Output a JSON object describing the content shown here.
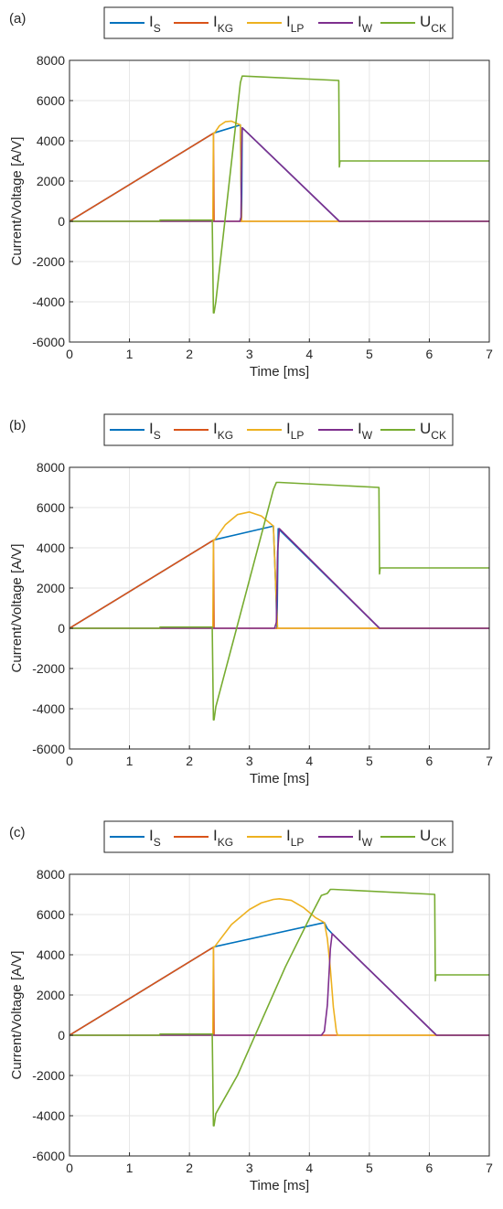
{
  "figure": {
    "panels": [
      "(a)",
      "(b)",
      "(c)"
    ]
  },
  "legend_entries": [
    {
      "main": "I",
      "sub": "S",
      "color": "#0072BD"
    },
    {
      "main": "I",
      "sub": "KG",
      "color": "#D95319"
    },
    {
      "main": "I",
      "sub": "LP",
      "color": "#EDB120"
    },
    {
      "main": "I",
      "sub": "W",
      "color": "#7E2F8E"
    },
    {
      "main": "U",
      "sub": "CK",
      "color": "#77AC30"
    }
  ],
  "chart_data": [
    {
      "type": "line",
      "panel_label": "(a)",
      "xlabel": "Time [ms]",
      "ylabel": "Current/Voltage [A/V]",
      "xlim": [
        0,
        7
      ],
      "ylim": [
        -6000,
        8000
      ],
      "xticks": [
        0,
        1,
        2,
        3,
        4,
        5,
        6,
        7
      ],
      "yticks": [
        -6000,
        -4000,
        -2000,
        0,
        2000,
        4000,
        6000,
        8000
      ],
      "grid": true,
      "legend_position": "top-outside",
      "series": [
        {
          "name": "I_S",
          "x": [
            0,
            2.4,
            2.42,
            2.85,
            2.86,
            2.87,
            2.88,
            4.5,
            7
          ],
          "y": [
            0,
            4380,
            4400,
            4790,
            2000,
            0,
            4650,
            0,
            0
          ]
        },
        {
          "name": "I_KG",
          "x": [
            0,
            2.4,
            2.41,
            7
          ],
          "y": [
            0,
            4380,
            0,
            0
          ]
        },
        {
          "name": "I_LP",
          "x": [
            0,
            2.39,
            2.4,
            2.42,
            2.5,
            2.6,
            2.7,
            2.8,
            2.85,
            2.86,
            2.87,
            2.88,
            7
          ],
          "y": [
            0,
            0,
            4380,
            4400,
            4750,
            4950,
            4980,
            4850,
            4790,
            2000,
            0,
            0,
            0
          ]
        },
        {
          "name": "I_W",
          "x": [
            0,
            2.84,
            2.86,
            2.87,
            2.88,
            4.5,
            7
          ],
          "y": [
            0,
            0,
            200,
            3500,
            4650,
            0,
            0
          ]
        },
        {
          "name": "U_CK",
          "x": [
            0,
            1.5,
            1.51,
            2.38,
            2.4,
            2.41,
            2.44,
            2.85,
            2.88,
            2.9,
            4.49,
            4.5,
            4.51,
            4.52,
            7
          ],
          "y": [
            0,
            0,
            60,
            60,
            -4550,
            -4550,
            -4000,
            6900,
            7220,
            7220,
            7000,
            2700,
            3000,
            3000,
            3000
          ]
        }
      ]
    },
    {
      "type": "line",
      "panel_label": "(b)",
      "xlabel": "Time [ms]",
      "ylabel": "Current/Voltage [A/V]",
      "xlim": [
        0,
        7
      ],
      "ylim": [
        -6000,
        8000
      ],
      "xticks": [
        0,
        1,
        2,
        3,
        4,
        5,
        6,
        7
      ],
      "yticks": [
        -6000,
        -4000,
        -2000,
        0,
        2000,
        4000,
        6000,
        8000
      ],
      "grid": true,
      "legend_position": "top-outside",
      "series": [
        {
          "name": "I_S",
          "x": [
            0,
            2.4,
            2.42,
            3.4,
            3.44,
            3.46,
            3.48,
            5.17,
            7
          ],
          "y": [
            0,
            4380,
            4400,
            5080,
            2000,
            0,
            4950,
            0,
            0
          ]
        },
        {
          "name": "I_KG",
          "x": [
            0,
            2.4,
            2.41,
            7
          ],
          "y": [
            0,
            4380,
            0,
            0
          ]
        },
        {
          "name": "I_LP",
          "x": [
            0,
            2.39,
            2.4,
            2.42,
            2.6,
            2.8,
            3.0,
            3.2,
            3.4,
            3.44,
            3.47,
            7
          ],
          "y": [
            0,
            0,
            4380,
            4400,
            5150,
            5650,
            5780,
            5580,
            5080,
            2000,
            0,
            0
          ]
        },
        {
          "name": "I_W",
          "x": [
            0,
            3.42,
            3.45,
            3.47,
            3.5,
            5.17,
            7
          ],
          "y": [
            0,
            0,
            300,
            3800,
            4950,
            0,
            0
          ]
        },
        {
          "name": "U_CK",
          "x": [
            0,
            1.5,
            1.51,
            2.38,
            2.4,
            2.41,
            2.44,
            3.4,
            3.45,
            3.5,
            5.16,
            5.17,
            5.18,
            5.19,
            7
          ],
          "y": [
            0,
            0,
            60,
            60,
            -4550,
            -4550,
            -3900,
            6900,
            7250,
            7250,
            7000,
            2700,
            3000,
            3000,
            3000
          ]
        }
      ]
    },
    {
      "type": "line",
      "panel_label": "(c)",
      "xlabel": "Time [ms]",
      "ylabel": "Current/Voltage [A/V]",
      "xlim": [
        0,
        7
      ],
      "ylim": [
        -6000,
        8000
      ],
      "xticks": [
        0,
        1,
        2,
        3,
        4,
        5,
        6,
        7
      ],
      "yticks": [
        -6000,
        -4000,
        -2000,
        0,
        2000,
        4000,
        6000,
        8000
      ],
      "grid": true,
      "legend_position": "top-outside",
      "series": [
        {
          "name": "I_S",
          "x": [
            0,
            2.4,
            2.42,
            4.25,
            4.3,
            4.38,
            6.12,
            7
          ],
          "y": [
            0,
            4380,
            4400,
            5600,
            5300,
            5050,
            0,
            0
          ]
        },
        {
          "name": "I_KG",
          "x": [
            0,
            2.4,
            2.41,
            7
          ],
          "y": [
            0,
            4380,
            0,
            0
          ]
        },
        {
          "name": "I_LP",
          "x": [
            0,
            2.39,
            2.4,
            2.42,
            2.7,
            3.0,
            3.2,
            3.4,
            3.5,
            3.7,
            3.9,
            4.1,
            4.25,
            4.3,
            4.35,
            4.4,
            4.45,
            4.47,
            7
          ],
          "y": [
            0,
            0,
            4380,
            4400,
            5500,
            6250,
            6580,
            6750,
            6780,
            6700,
            6350,
            5850,
            5600,
            4800,
            3300,
            1400,
            200,
            0,
            0
          ]
        },
        {
          "name": "I_W",
          "x": [
            0,
            4.2,
            4.25,
            4.3,
            4.35,
            4.38,
            6.12,
            7
          ],
          "y": [
            0,
            0,
            200,
            1500,
            4300,
            5050,
            0,
            0
          ]
        },
        {
          "name": "U_CK",
          "x": [
            0,
            1.5,
            1.51,
            2.38,
            2.4,
            2.41,
            2.44,
            2.8,
            3.2,
            3.6,
            4.0,
            4.2,
            4.3,
            4.35,
            4.4,
            6.09,
            6.1,
            6.11,
            6.12,
            7
          ],
          "y": [
            0,
            0,
            60,
            60,
            -4500,
            -4500,
            -3900,
            -2000,
            700,
            3400,
            5800,
            6950,
            7050,
            7250,
            7250,
            7000,
            2700,
            3000,
            3000,
            3000
          ]
        }
      ]
    }
  ]
}
